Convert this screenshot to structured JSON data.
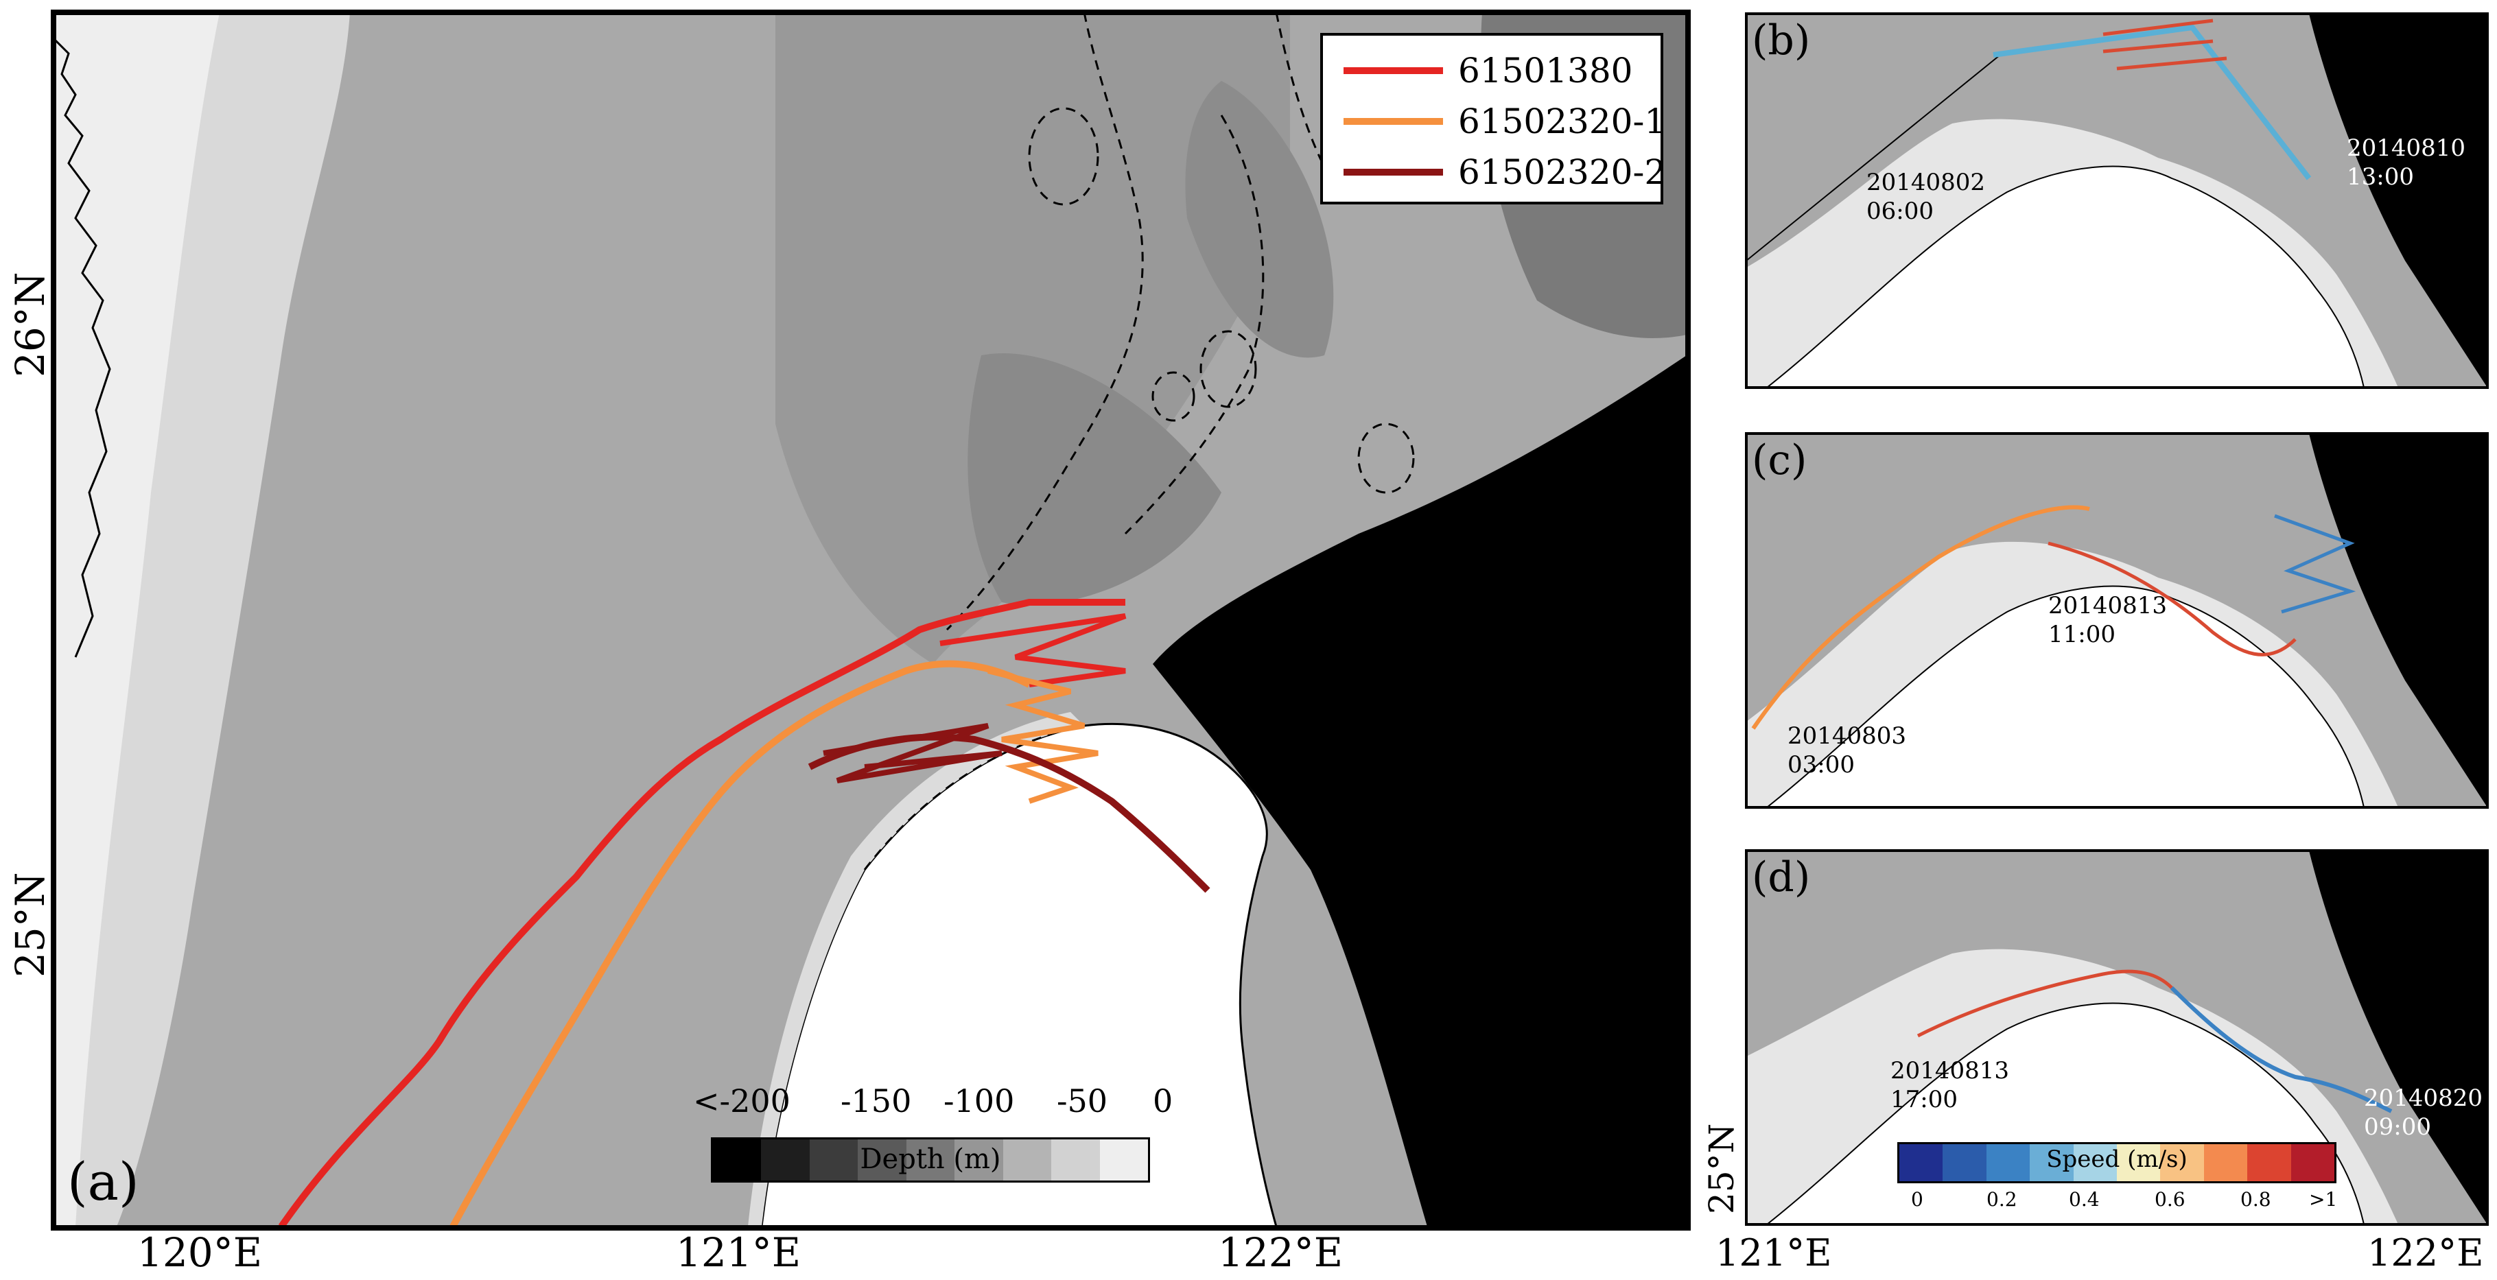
{
  "panel_a": {
    "label": "(a)",
    "lat_ticks": [
      "26°N",
      "25°N"
    ],
    "lon_ticks": [
      "120°E",
      "121°E",
      "122°E"
    ],
    "legend": [
      {
        "name": "61501380",
        "color": "#e52522"
      },
      {
        "name": "61502320-1",
        "color": "#f5903d"
      },
      {
        "name": "61502320-2",
        "color": "#8b1414"
      }
    ],
    "depth_colorbar": {
      "title": "Depth (m)",
      "ticks": [
        "<-200",
        "-150",
        "-100",
        "-50",
        "0"
      ],
      "colors": [
        "#000000",
        "#1e1e1e",
        "#3c3c3c",
        "#5a5a5a",
        "#787878",
        "#969696",
        "#b4b4b4",
        "#d2d2d2",
        "#eeeeee"
      ]
    }
  },
  "panel_b": {
    "label": "(b)",
    "annotations": [
      {
        "line1": "20140802",
        "line2": "06:00"
      },
      {
        "line1": "20140810",
        "line2": "13:00"
      }
    ]
  },
  "panel_c": {
    "label": "(c)",
    "annotations": [
      {
        "line1": "20140813",
        "line2": "11:00"
      },
      {
        "line1": "20140803",
        "line2": "03:00"
      }
    ]
  },
  "panel_d": {
    "label": "(d)",
    "annotations": [
      {
        "line1": "20140813",
        "line2": "17:00"
      },
      {
        "line1": "20140820",
        "line2": "09:00"
      }
    ],
    "speed_colorbar": {
      "title": "Speed (m/s)",
      "ticks": [
        "0",
        "0.2",
        "0.4",
        "0.6",
        "0.8",
        ">1"
      ],
      "colors": [
        "#1f2f8f",
        "#2b5cab",
        "#3b82c4",
        "#6aaed6",
        "#a6d4e6",
        "#f4eec0",
        "#f8c283",
        "#f38a4f",
        "#dc4430",
        "#b31d2a"
      ]
    }
  },
  "right_axes": {
    "lat_tick": "25°N",
    "lon_ticks": [
      "121°E",
      "122°E"
    ]
  }
}
